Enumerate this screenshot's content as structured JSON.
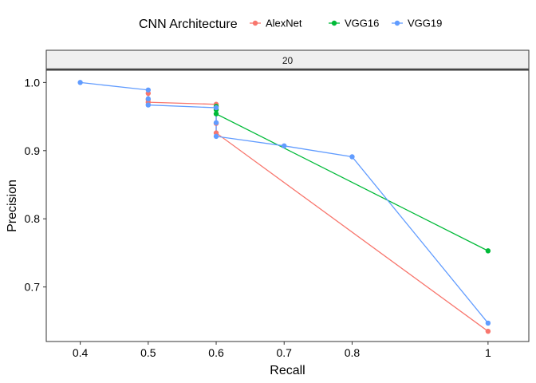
{
  "chart_data": {
    "type": "line",
    "facet_label": "20",
    "xlabel": "Recall",
    "ylabel": "Precision",
    "xlim": [
      0.35,
      1.06
    ],
    "ylim": [
      0.62,
      1.018
    ],
    "x_ticks": [
      0.4,
      0.5,
      0.6,
      0.7,
      0.8,
      1.0
    ],
    "x_tick_labels": [
      "0.4",
      "0.5",
      "0.6",
      "0.7",
      "0.8",
      "1"
    ],
    "y_ticks": [
      0.7,
      0.8,
      0.9,
      1.0
    ],
    "y_tick_labels": [
      "0.7",
      "0.8",
      "0.9",
      "1.0"
    ],
    "grid": false,
    "legend": {
      "title": "CNN Architecture",
      "position": "top",
      "entries": [
        "AlexNet",
        "VGG16",
        "VGG19"
      ]
    },
    "series": [
      {
        "name": "AlexNet",
        "color": "#F8766D",
        "points": [
          [
            0.5,
            0.984
          ],
          [
            0.5,
            0.975
          ],
          [
            0.5,
            0.971
          ],
          [
            0.6,
            0.968
          ],
          [
            0.6,
            0.94
          ],
          [
            0.6,
            0.926
          ],
          [
            1.0,
            0.635
          ]
        ]
      },
      {
        "name": "VGG16",
        "color": "#00BA38",
        "points": [
          [
            0.6,
            0.965
          ],
          [
            0.6,
            0.96
          ],
          [
            0.6,
            0.954
          ],
          [
            1.0,
            0.753
          ]
        ]
      },
      {
        "name": "VGG19",
        "color": "#619CFF",
        "points": [
          [
            0.4,
            1.0
          ],
          [
            0.5,
            0.989
          ],
          [
            0.5,
            0.976
          ],
          [
            0.5,
            0.967
          ],
          [
            0.6,
            0.963
          ],
          [
            0.6,
            0.941
          ],
          [
            0.6,
            0.921
          ],
          [
            0.7,
            0.907
          ],
          [
            0.8,
            0.891
          ],
          [
            1.0,
            0.647
          ]
        ]
      }
    ]
  }
}
